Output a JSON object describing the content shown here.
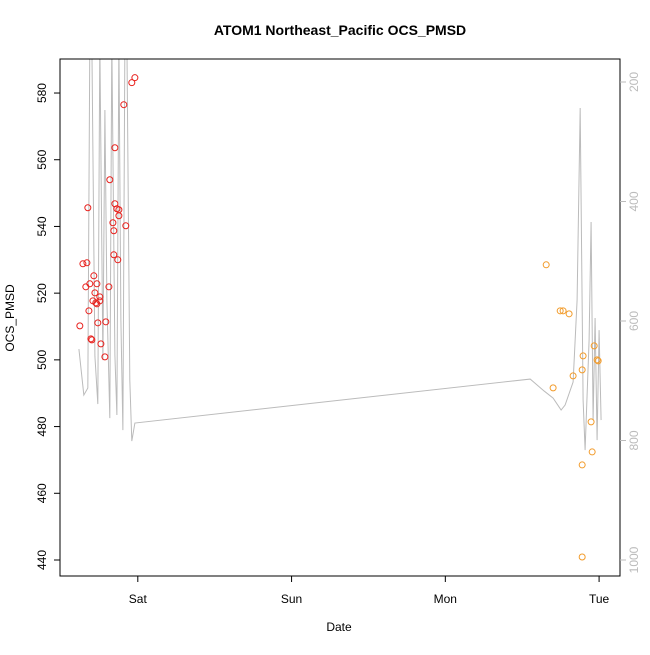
{
  "chart_data": {
    "type": "scatter",
    "title": "ATOM1 Northeast_Pacific OCS_PMSD",
    "xlabel": "Date",
    "ylabel": "OCS_PMSD",
    "xlim": [
      0.494,
      4.136
    ],
    "xticks": [
      {
        "value": 1,
        "label": "Sat"
      },
      {
        "value": 2,
        "label": "Sun"
      },
      {
        "value": 3,
        "label": "Mon"
      },
      {
        "value": 4,
        "label": "Tue"
      }
    ],
    "ylim": [
      435.2,
      590.2
    ],
    "yticks": [
      440,
      460,
      480,
      500,
      520,
      540,
      560,
      580
    ],
    "y2lim": [
      1026.8,
      161.5
    ],
    "y2ticks": [
      200,
      400,
      600,
      800,
      1000
    ],
    "series": [
      {
        "type": "scatter",
        "color": "#e8201c",
        "x": [
          0.623,
          0.643,
          0.662,
          0.669,
          0.682,
          0.675,
          0.688,
          0.695,
          0.701,
          0.714,
          0.708,
          0.721,
          0.727,
          0.734,
          0.734,
          0.74,
          0.753,
          0.753,
          0.76,
          0.786,
          0.792,
          0.812,
          0.818,
          0.838,
          0.844,
          0.844,
          0.851,
          0.851,
          0.864,
          0.87,
          0.877,
          0.877,
          0.909,
          0.922,
          0.961,
          0.981
        ],
        "values": [
          510.2,
          528.8,
          521.9,
          529.1,
          514.7,
          545.6,
          522.8,
          506.3,
          506.0,
          525.2,
          517.7,
          520.1,
          517.1,
          516.8,
          522.8,
          511.1,
          518.9,
          517.7,
          504.8,
          500.9,
          511.4,
          521.9,
          554.0,
          541.1,
          538.7,
          531.5,
          563.6,
          546.8,
          545.3,
          530.0,
          543.2,
          545.0,
          576.5,
          540.2,
          583.1,
          584.6
        ]
      },
      {
        "type": "scatter",
        "color": "#f29b2a",
        "x": [
          3.656,
          3.701,
          3.747,
          3.766,
          3.805,
          3.831,
          3.89,
          3.89,
          3.89,
          3.896,
          3.948,
          3.955,
          3.968,
          3.987,
          3.994
        ],
        "values": [
          528.5,
          491.6,
          514.7,
          514.7,
          513.8,
          495.2,
          440.9,
          468.5,
          497.0,
          501.2,
          481.4,
          472.4,
          504.2,
          500.0,
          499.7
        ]
      },
      {
        "type": "line",
        "axis": "y2",
        "color": "#bbbbbb",
        "x": [
          0.617,
          0.649,
          0.675,
          0.688,
          0.701,
          0.721,
          0.74,
          0.753,
          0.773,
          0.786,
          0.799,
          0.818,
          0.831,
          0.851,
          0.864,
          0.877,
          0.89,
          0.903,
          0.916,
          0.929,
          0.948,
          0.961,
          0.981,
          3.552,
          3.643,
          3.701,
          3.753,
          3.779,
          3.831,
          3.857,
          3.877,
          3.896,
          3.909,
          3.935,
          3.948,
          3.961,
          3.974,
          3.987,
          4.0,
          4.013
        ],
        "values": [
          647.0,
          724.0,
          712.2,
          129.7,
          129.7,
          658.7,
          739.0,
          129.7,
          665.4,
          246.9,
          564.9,
          762.5,
          129.7,
          657.0,
          757.4,
          129.7,
          598.4,
          782.6,
          129.7,
          129.7,
          698.9,
          801.0,
          770.8,
          697.2,
          717.3,
          729.0,
          749.1,
          740.7,
          702.2,
          564.9,
          243.5,
          732.3,
          816.0,
          631.9,
          434.4,
          765.8,
          595.1,
          799.3,
          615.2,
          765.8
        ]
      }
    ]
  }
}
